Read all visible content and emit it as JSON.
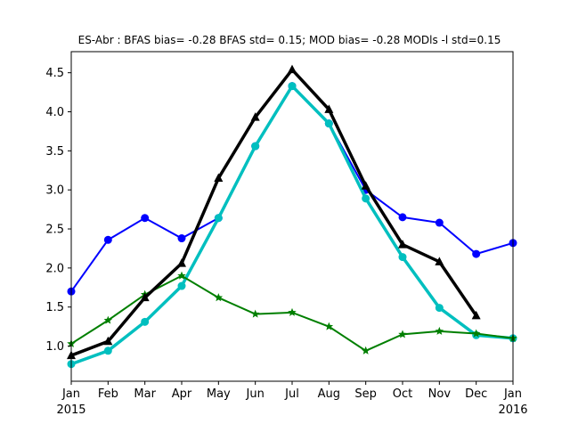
{
  "chart_data": {
    "type": "line",
    "title": "ES-Abr   : BFAS bias= -0.28 BFAS std= 0.15; MOD bias= -0.28 MODls -l std=0.15",
    "xlabel": "",
    "ylabel": "",
    "x_ticks": [
      {
        "month": 0,
        "label": "Jan",
        "sublabel": "2015"
      },
      {
        "month": 1,
        "label": "Feb",
        "sublabel": ""
      },
      {
        "month": 2,
        "label": "Mar",
        "sublabel": ""
      },
      {
        "month": 3,
        "label": "Apr",
        "sublabel": ""
      },
      {
        "month": 4,
        "label": "May",
        "sublabel": ""
      },
      {
        "month": 5,
        "label": "Jun",
        "sublabel": ""
      },
      {
        "month": 6,
        "label": "Jul",
        "sublabel": ""
      },
      {
        "month": 7,
        "label": "Aug",
        "sublabel": ""
      },
      {
        "month": 8,
        "label": "Sep",
        "sublabel": ""
      },
      {
        "month": 9,
        "label": "Oct",
        "sublabel": ""
      },
      {
        "month": 10,
        "label": "Nov",
        "sublabel": ""
      },
      {
        "month": 11,
        "label": "Dec",
        "sublabel": ""
      },
      {
        "month": 12,
        "label": "Jan",
        "sublabel": "2016"
      }
    ],
    "y_ticks": [
      1.0,
      1.5,
      2.0,
      2.5,
      3.0,
      3.5,
      4.0,
      4.5
    ],
    "xlim": [
      0,
      12
    ],
    "ylim": [
      0.55,
      4.77
    ],
    "grid": false,
    "series": [
      {
        "color": "#0000ff",
        "marker": "circle",
        "width": 2,
        "x": [
          0,
          1,
          2,
          3,
          4,
          5,
          6,
          7,
          8,
          9,
          10,
          11,
          12
        ],
        "y": [
          1.7,
          2.36,
          2.64,
          2.38,
          2.64,
          3.56,
          4.33,
          3.85,
          3.0,
          2.65,
          2.58,
          2.18,
          2.32
        ]
      },
      {
        "color": "#00bfbf",
        "marker": "circle",
        "width": 3.5,
        "x": [
          0,
          1,
          2,
          3,
          4,
          5,
          6,
          7,
          8,
          9,
          10,
          11,
          12
        ],
        "y": [
          0.77,
          0.94,
          1.31,
          1.77,
          2.64,
          3.56,
          4.33,
          3.85,
          2.89,
          2.14,
          1.49,
          1.14,
          1.1
        ]
      },
      {
        "color": "#007f00",
        "marker": "star",
        "width": 2,
        "x": [
          0,
          1,
          2,
          3,
          4,
          5,
          6,
          7,
          8,
          9,
          10,
          11,
          12
        ],
        "y": [
          1.03,
          1.33,
          1.66,
          1.9,
          1.62,
          1.41,
          1.43,
          1.25,
          0.94,
          1.15,
          1.19,
          1.16,
          1.1
        ]
      },
      {
        "color": "#000000",
        "marker": "triangle",
        "width": 3.5,
        "x": [
          0,
          1,
          2,
          3,
          4,
          5,
          6,
          7,
          8,
          9,
          10,
          11
        ],
        "y": [
          0.88,
          1.06,
          1.62,
          2.06,
          3.15,
          3.93,
          4.54,
          4.03,
          3.05,
          2.3,
          2.08,
          1.39
        ]
      }
    ]
  }
}
